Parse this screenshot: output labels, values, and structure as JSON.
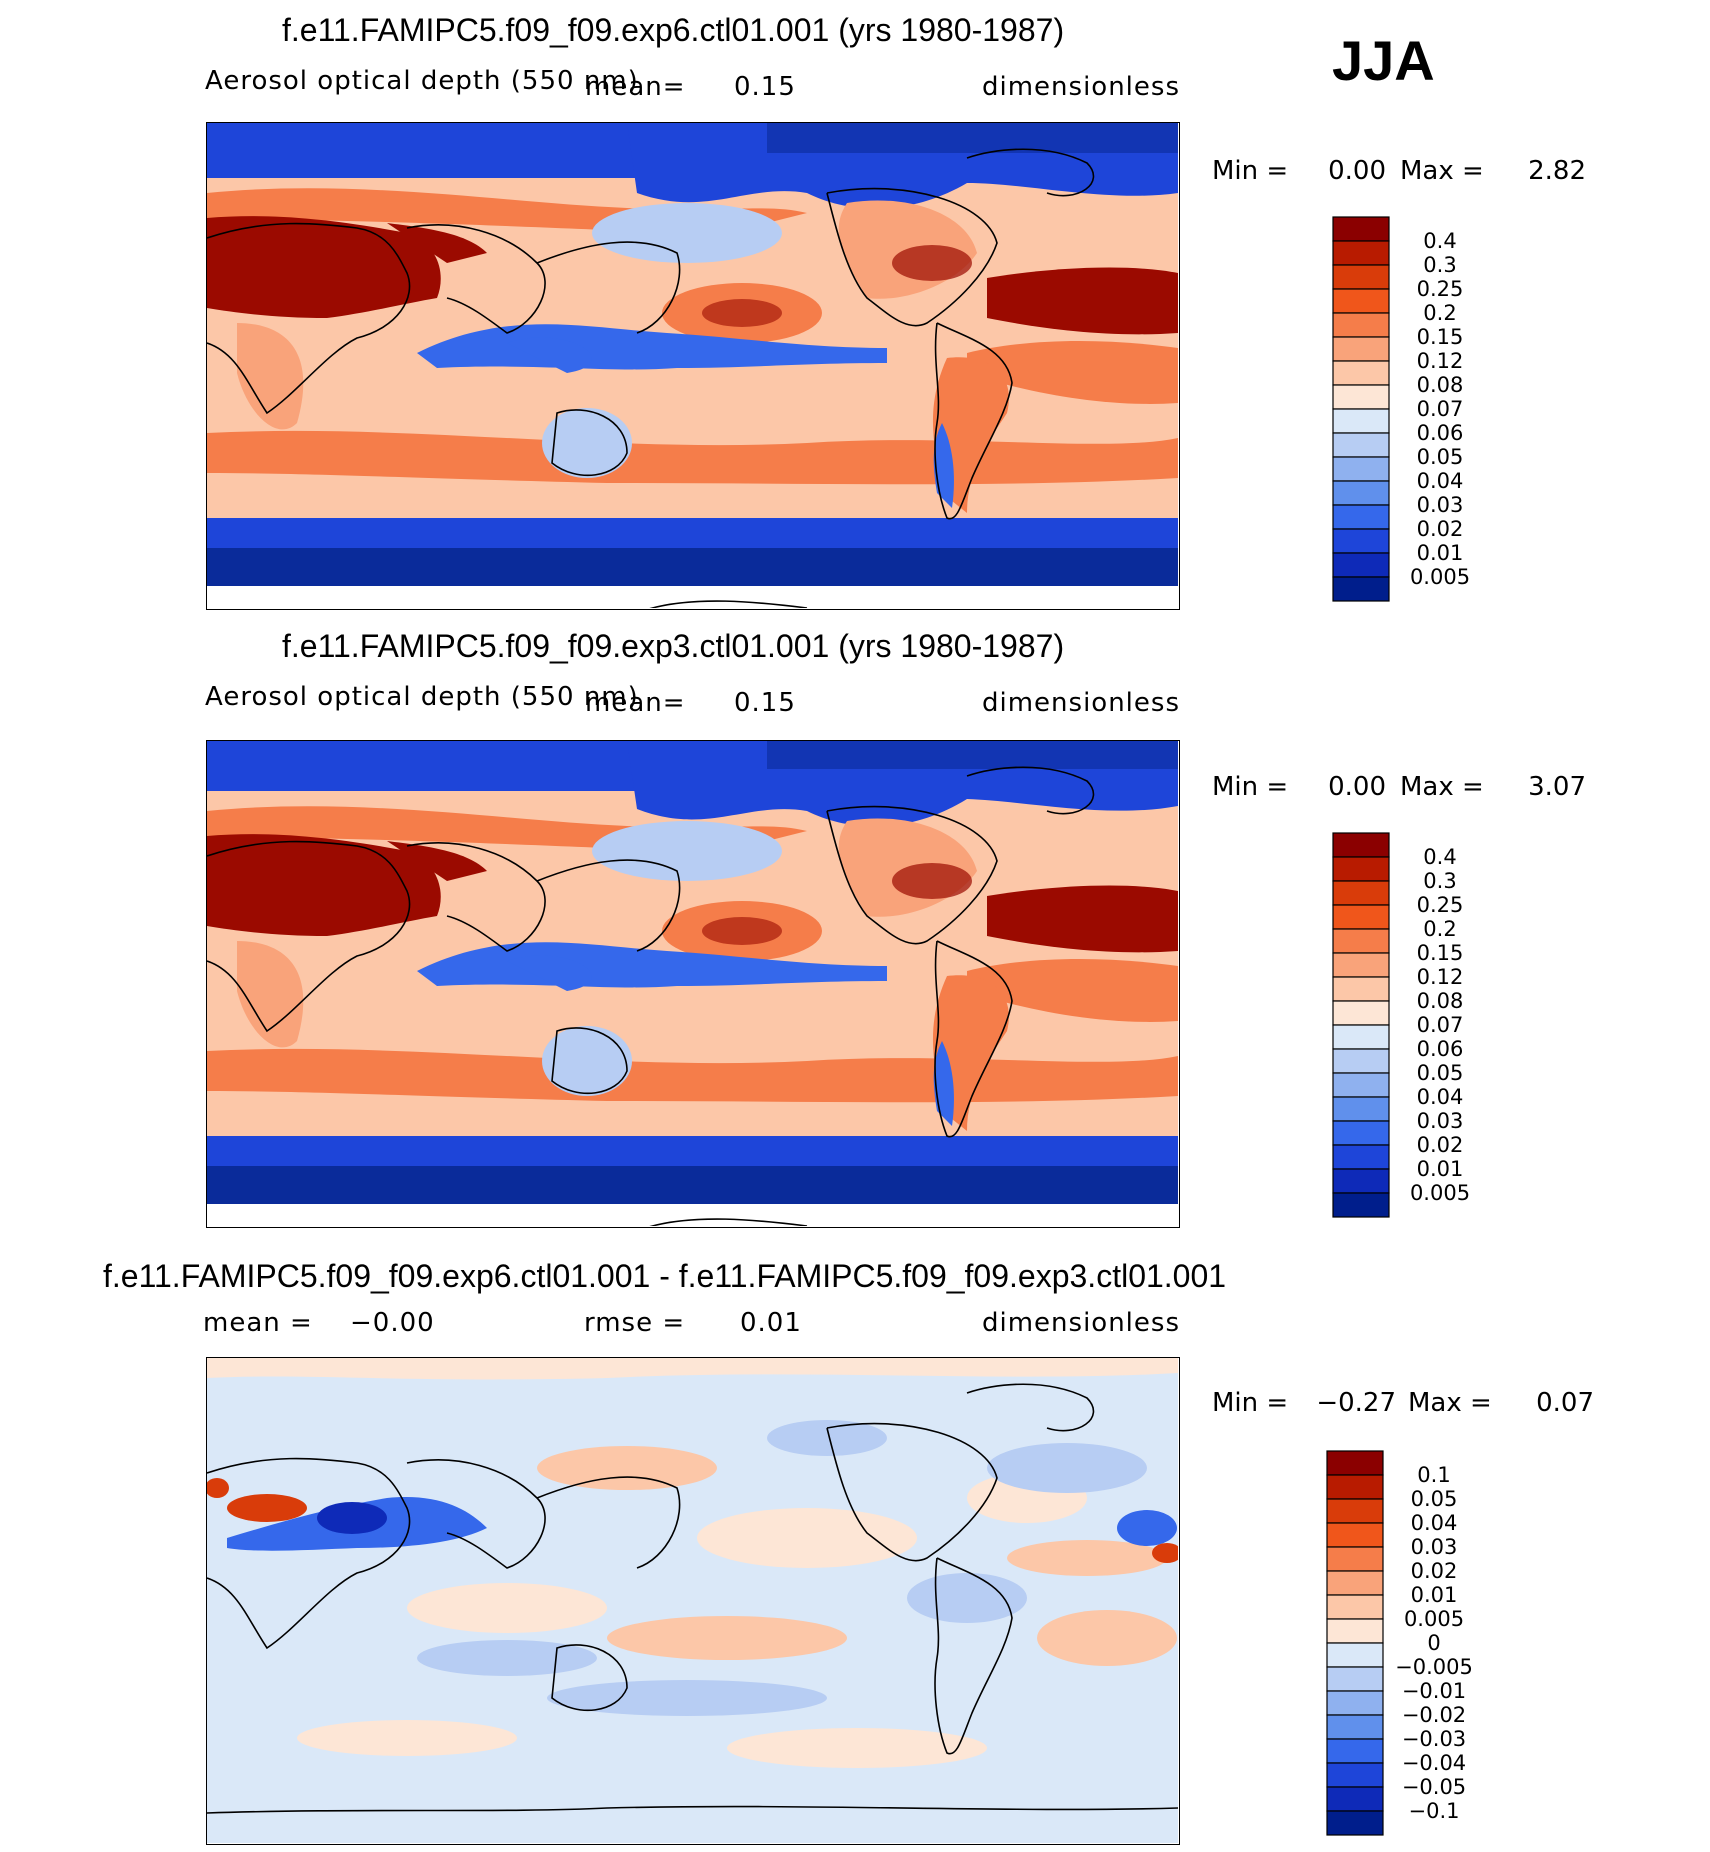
{
  "season": "JJA",
  "panels": [
    {
      "title": "f.e11.FAMIPC5.f09_f09.exp6.ctl01.001 (yrs 1980-1987)",
      "variable": "Aerosol optical depth (550 nm)",
      "stat_label": "mean=",
      "stat_value": "0.15",
      "units": "dimensionless",
      "min_label": "Min =",
      "min_value": "0.00",
      "max_label": "Max =",
      "max_value": "2.82",
      "colorbar_levels": [
        "0.4",
        "0.3",
        "0.25",
        "0.2",
        "0.15",
        "0.12",
        "0.08",
        "0.07",
        "0.06",
        "0.05",
        "0.04",
        "0.03",
        "0.02",
        "0.01",
        "0.005"
      ],
      "colorbar_colors": [
        "#8b0000",
        "#b81b00",
        "#d93c0a",
        "#f0561b",
        "#f57d4a",
        "#f9a37a",
        "#fcc7a8",
        "#fde6d6",
        "#dae8f8",
        "#b7cdf3",
        "#8fb1ef",
        "#6090ec",
        "#3568eb",
        "#1e45d9",
        "#0e2ab8",
        "#001e8c"
      ],
      "map_palette": {
        "ocean_mid": "#fcc7a8",
        "ocean_high": "#f57d4a",
        "polar": "#1e45d9",
        "polar_deep": "#0a2b9a",
        "dust": "#9b0a00",
        "tropical_low": "#3568eb",
        "land_moderate": "#f9a37a"
      }
    },
    {
      "title": "f.e11.FAMIPC5.f09_f09.exp3.ctl01.001 (yrs 1980-1987)",
      "variable": "Aerosol optical depth (550 nm)",
      "stat_label": "mean=",
      "stat_value": "0.15",
      "units": "dimensionless",
      "min_label": "Min =",
      "min_value": "0.00",
      "max_label": "Max =",
      "max_value": "3.07",
      "colorbar_levels": [
        "0.4",
        "0.3",
        "0.25",
        "0.2",
        "0.15",
        "0.12",
        "0.08",
        "0.07",
        "0.06",
        "0.05",
        "0.04",
        "0.03",
        "0.02",
        "0.01",
        "0.005"
      ],
      "colorbar_colors": [
        "#8b0000",
        "#b81b00",
        "#d93c0a",
        "#f0561b",
        "#f57d4a",
        "#f9a37a",
        "#fcc7a8",
        "#fde6d6",
        "#dae8f8",
        "#b7cdf3",
        "#8fb1ef",
        "#6090ec",
        "#3568eb",
        "#1e45d9",
        "#0e2ab8",
        "#001e8c"
      ],
      "map_palette": {
        "ocean_mid": "#fcc7a8",
        "ocean_high": "#f57d4a",
        "polar": "#1e45d9",
        "polar_deep": "#0a2b9a",
        "dust": "#9b0a00",
        "tropical_low": "#3568eb",
        "land_moderate": "#f9a37a"
      }
    },
    {
      "title": "f.e11.FAMIPC5.f09_f09.exp6.ctl01.001 - f.e11.FAMIPC5.f09_f09.exp3.ctl01.001",
      "mean_label": "mean =",
      "mean_value": "−0.00",
      "rmse_label": "rmse =",
      "rmse_value": "0.01",
      "units": "dimensionless",
      "min_label": "Min =",
      "min_value": "−0.27",
      "max_label": "Max =",
      "max_value": "0.07",
      "colorbar_levels": [
        "0.1",
        "0.05",
        "0.04",
        "0.03",
        "0.02",
        "0.01",
        "0.005",
        "0",
        "−0.005",
        "−0.01",
        "−0.02",
        "−0.03",
        "−0.04",
        "−0.05",
        "−0.1"
      ],
      "colorbar_colors": [
        "#8b0000",
        "#b81b00",
        "#d93c0a",
        "#f0561b",
        "#f57d4a",
        "#f9a37a",
        "#fcc7a8",
        "#fde6d6",
        "#dae8f8",
        "#b7cdf3",
        "#8fb1ef",
        "#6090ec",
        "#3568eb",
        "#1e45d9",
        "#0e2ab8",
        "#001e8c"
      ],
      "map_palette": {
        "background": "#dae8f8",
        "pos_light": "#fde6d6",
        "pos_mid": "#fcc7a8",
        "neg_mid": "#b7cdf3",
        "neg_strong": "#3568eb",
        "neg_deep": "#0e2ab8",
        "pos_strong": "#d93c0a"
      }
    }
  ]
}
